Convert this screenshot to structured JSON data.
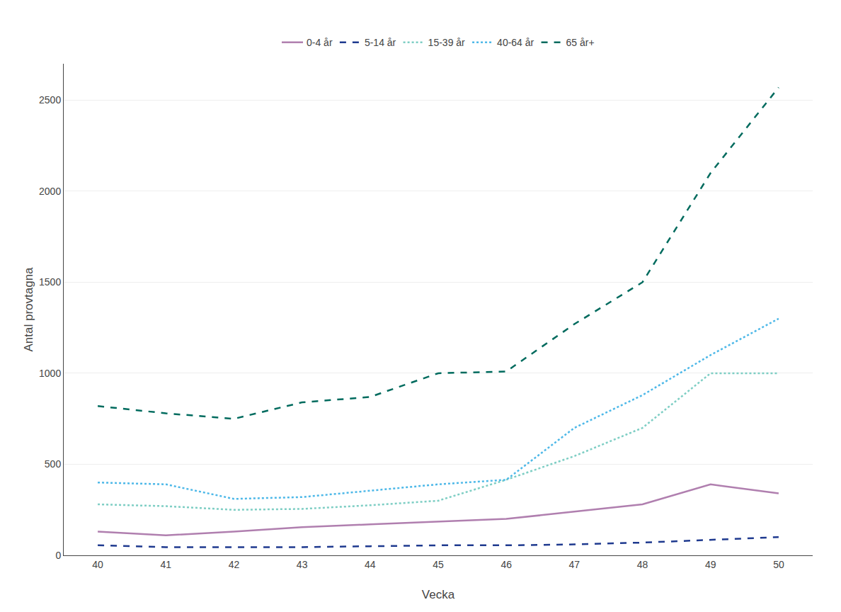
{
  "chart_data": {
    "type": "line",
    "xlabel": "Vecka",
    "ylabel": "Antal provtagna",
    "x": [
      40,
      41,
      42,
      43,
      44,
      45,
      46,
      47,
      48,
      49,
      50
    ],
    "series": [
      {
        "name": "0-4 år",
        "color": "#b07faf",
        "line_style": "solid",
        "values": [
          130,
          110,
          130,
          155,
          170,
          185,
          200,
          240,
          280,
          390,
          340
        ]
      },
      {
        "name": "5-14 år",
        "color": "#1f3a8f",
        "line_style": "dashed",
        "values": [
          55,
          45,
          45,
          45,
          50,
          55,
          55,
          60,
          70,
          85,
          100
        ]
      },
      {
        "name": "15-39 år",
        "color": "#7ecec4",
        "line_style": "dotted",
        "values": [
          280,
          270,
          250,
          255,
          275,
          300,
          415,
          545,
          700,
          1000,
          1000
        ]
      },
      {
        "name": "40-64 år",
        "color": "#4db8e8",
        "line_style": "dotted",
        "values": [
          400,
          390,
          310,
          320,
          355,
          390,
          415,
          700,
          880,
          1100,
          1300
        ]
      },
      {
        "name": "65 år+",
        "color": "#006b5e",
        "line_style": "dashed",
        "values": [
          820,
          780,
          750,
          840,
          870,
          1000,
          1010,
          1270,
          1500,
          2100,
          2570
        ]
      }
    ],
    "xlim": [
      39.5,
      50.5
    ],
    "xticks": [
      40,
      41,
      42,
      43,
      44,
      45,
      46,
      47,
      48,
      49,
      50
    ],
    "ylim": [
      0,
      2700
    ],
    "yticks": [
      0,
      500,
      1000,
      1500,
      2000,
      2500
    ],
    "grid": true,
    "legend": "top"
  }
}
